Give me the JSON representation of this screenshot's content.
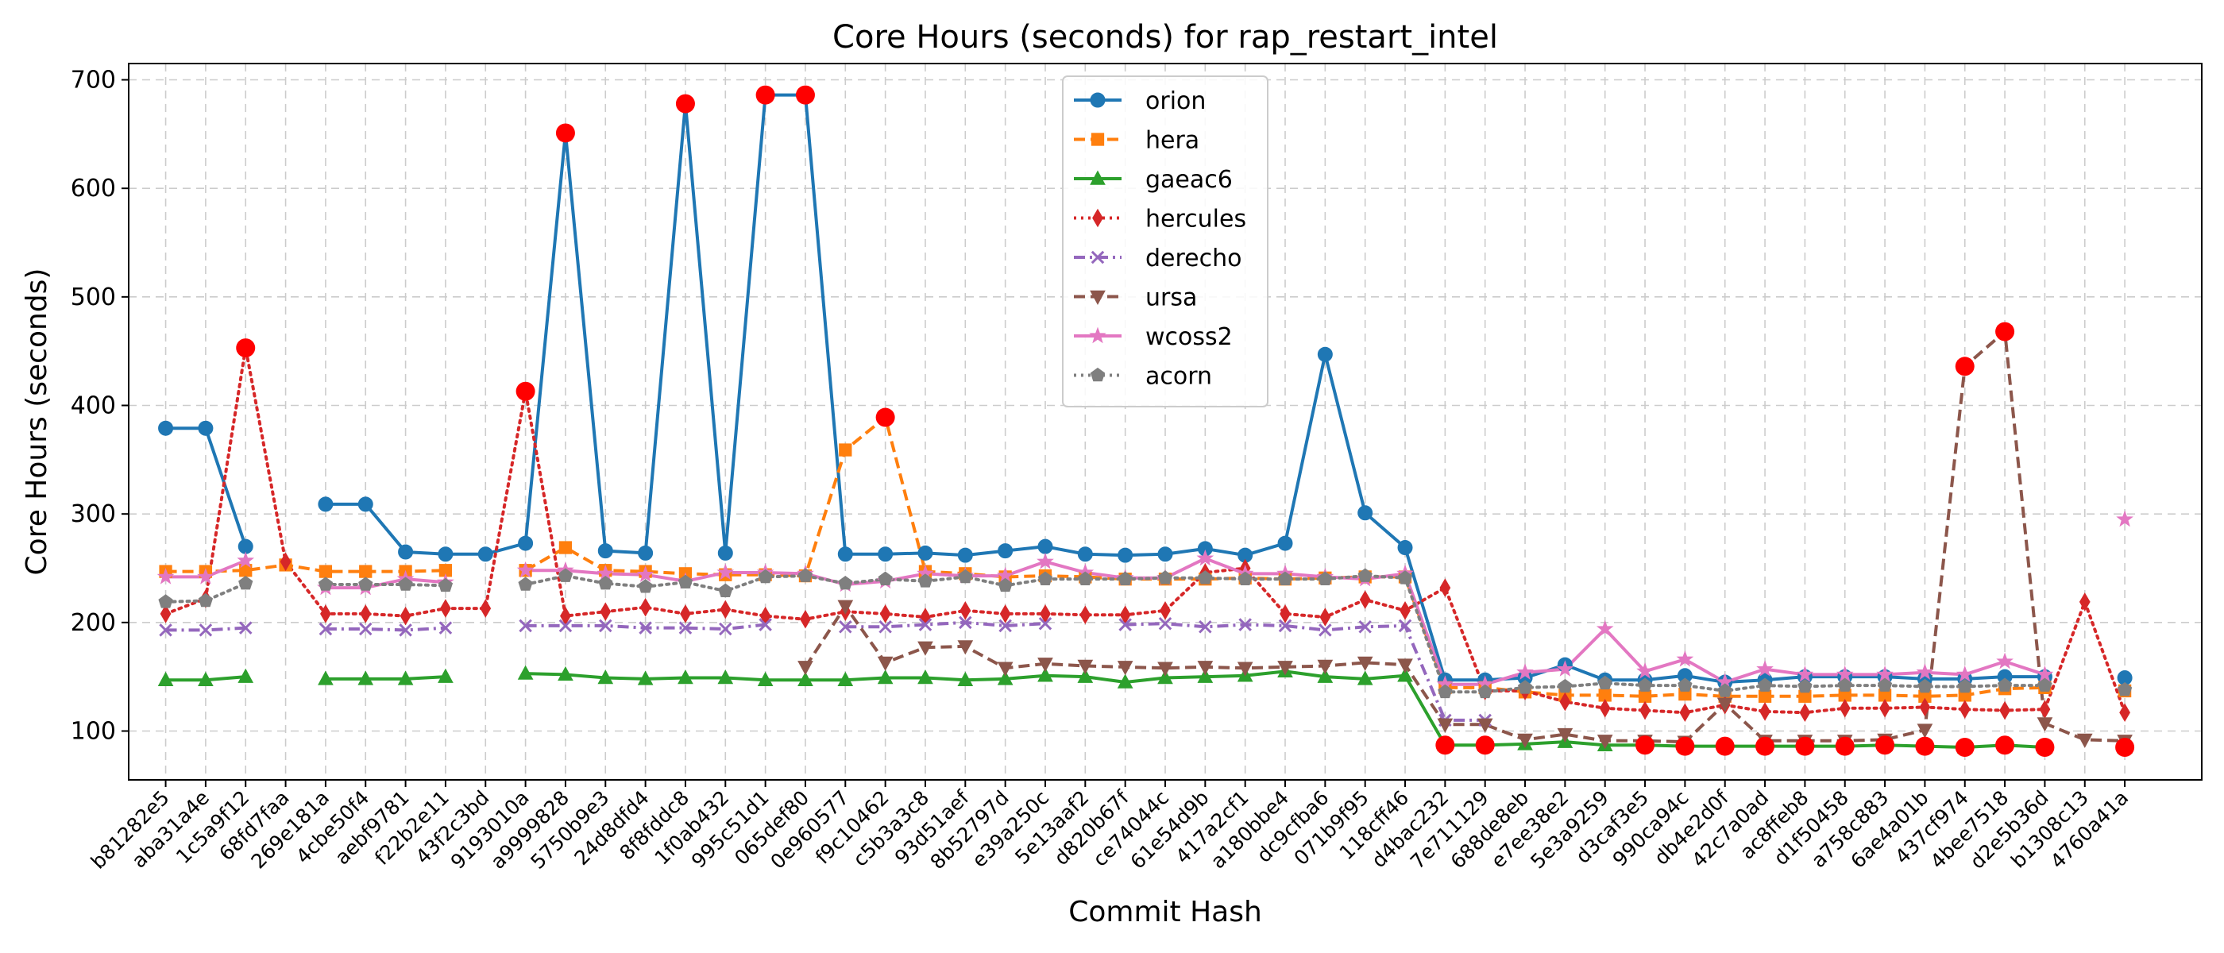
{
  "chart_data": {
    "type": "line",
    "title": "Core Hours (seconds) for rap_restart_intel",
    "xlabel": "Commit Hash",
    "ylabel": "Core Hours (seconds)",
    "ylim": [
      55,
      715
    ],
    "yticks": [
      100,
      200,
      300,
      400,
      500,
      600,
      700
    ],
    "grid": true,
    "legend_position": "top-center",
    "outlier_marker_color": "#ff0000",
    "categories": [
      "b81282e5",
      "aba31a4e",
      "1c5a9f12",
      "68fd7faa",
      "269e181a",
      "4cbe50f4",
      "aebf9781",
      "f22b2e11",
      "43f2c3bd",
      "9193010a",
      "a9999828",
      "5750b9e3",
      "24d8dfd4",
      "8f8fddc8",
      "1f0ab432",
      "995c51d1",
      "065def80",
      "0e960577",
      "f9c10462",
      "c5b3a3c8",
      "93d51aef",
      "8b52797d",
      "e39a250c",
      "5e13aaf2",
      "d820b67f",
      "ce74044c",
      "61e54d9b",
      "417a2cf1",
      "a180bbe4",
      "dc9cfba6",
      "071b9f95",
      "118cff46",
      "d4bac232",
      "7e711129",
      "688de8eb",
      "e7ee38e2",
      "5e3a9259",
      "d3caf3e5",
      "990ca94c",
      "db4e2d0f",
      "42c7a0ad",
      "ac8ffeb8",
      "d1f50458",
      "a758c883",
      "6ae4a01b",
      "437cf974",
      "4bee7518",
      "d2e5b36d",
      "b1308c13",
      "4760a41a"
    ],
    "series": [
      {
        "name": "orion",
        "color": "#1f77b4",
        "linestyle": "solid",
        "marker": "circle",
        "values": [
          379,
          379,
          270,
          null,
          309,
          309,
          265,
          263,
          263,
          273,
          651,
          266,
          264,
          678,
          264,
          686,
          686,
          263,
          263,
          264,
          262,
          266,
          270,
          263,
          262,
          263,
          268,
          262,
          273,
          447,
          301,
          269,
          147,
          147,
          149,
          161,
          147,
          147,
          151,
          145,
          147,
          150,
          150,
          150,
          148,
          148,
          150,
          150,
          null,
          149
        ],
        "outlier_indices": [
          10,
          13,
          15,
          16
        ]
      },
      {
        "name": "hera",
        "color": "#ff7f0e",
        "linestyle": "dashed",
        "marker": "square",
        "values": [
          247,
          247,
          248,
          253,
          247,
          247,
          247,
          248,
          null,
          248,
          269,
          248,
          247,
          245,
          244,
          244,
          243,
          359,
          389,
          247,
          245,
          242,
          243,
          242,
          240,
          240,
          240,
          241,
          240,
          241,
          242,
          242,
          140,
          140,
          136,
          133,
          133,
          132,
          134,
          132,
          132,
          132,
          133,
          133,
          132,
          133,
          139,
          140,
          null,
          137
        ],
        "outlier_indices": [
          18
        ]
      },
      {
        "name": "gaeac6",
        "color": "#2ca02c",
        "linestyle": "solid",
        "marker": "triangle-up",
        "values": [
          147,
          147,
          150,
          null,
          148,
          148,
          148,
          150,
          null,
          153,
          152,
          149,
          148,
          149,
          149,
          147,
          147,
          147,
          149,
          149,
          147,
          148,
          151,
          150,
          145,
          149,
          150,
          151,
          155,
          150,
          148,
          151,
          87,
          87,
          88,
          90,
          87,
          87,
          86,
          86,
          86,
          86,
          86,
          87,
          86,
          85,
          87,
          85,
          null,
          85
        ],
        "outlier_indices": [
          32,
          33,
          37,
          38,
          39,
          40,
          41,
          42,
          43,
          44,
          45,
          46,
          47,
          49
        ]
      },
      {
        "name": "hercules",
        "color": "#d62728",
        "linestyle": "dotted",
        "marker": "diamond",
        "values": [
          208,
          222,
          453,
          256,
          208,
          208,
          206,
          213,
          213,
          413,
          206,
          210,
          214,
          208,
          212,
          206,
          203,
          210,
          208,
          205,
          211,
          208,
          208,
          207,
          207,
          211,
          246,
          250,
          208,
          205,
          221,
          211,
          232,
          137,
          137,
          127,
          121,
          119,
          117,
          124,
          118,
          117,
          121,
          121,
          122,
          120,
          119,
          120,
          219,
          117
        ],
        "outlier_indices": [
          2,
          9
        ]
      },
      {
        "name": "derecho",
        "color": "#9467bd",
        "linestyle": "dashdot",
        "marker": "x",
        "values": [
          193,
          193,
          195,
          null,
          194,
          194,
          193,
          195,
          null,
          197,
          197,
          197,
          195,
          195,
          194,
          198,
          null,
          196,
          196,
          198,
          200,
          197,
          199,
          null,
          198,
          199,
          196,
          198,
          197,
          193,
          196,
          197,
          110,
          110,
          null,
          null,
          null,
          null,
          null,
          null,
          null,
          null,
          null,
          null,
          null,
          null,
          null,
          null,
          null,
          null
        ],
        "outlier_indices": []
      },
      {
        "name": "ursa",
        "color": "#8c564b",
        "linestyle": "dashed",
        "marker": "triangle-down",
        "values": [
          null,
          null,
          null,
          null,
          null,
          null,
          null,
          null,
          null,
          null,
          null,
          null,
          null,
          null,
          null,
          null,
          159,
          215,
          163,
          177,
          178,
          158,
          162,
          160,
          159,
          158,
          159,
          158,
          159,
          160,
          163,
          161,
          106,
          106,
          92,
          97,
          91,
          91,
          90,
          125,
          91,
          91,
          91,
          92,
          101,
          436,
          468,
          107,
          92,
          91
        ],
        "outlier_indices": [
          45,
          46
        ]
      },
      {
        "name": "wcoss2",
        "color": "#e377c2",
        "linestyle": "solid",
        "marker": "star",
        "values": [
          242,
          242,
          257,
          null,
          232,
          232,
          240,
          237,
          null,
          248,
          248,
          245,
          244,
          238,
          246,
          246,
          245,
          235,
          238,
          245,
          243,
          243,
          256,
          246,
          241,
          241,
          259,
          245,
          245,
          242,
          240,
          245,
          143,
          143,
          154,
          157,
          194,
          155,
          166,
          145,
          157,
          152,
          152,
          152,
          154,
          152,
          164,
          152,
          null,
          295
        ],
        "outlier_indices": []
      },
      {
        "name": "acorn",
        "color": "#7f7f7f",
        "linestyle": "dotted",
        "marker": "pentagon",
        "values": [
          219,
          220,
          236,
          null,
          235,
          235,
          235,
          234,
          null,
          235,
          243,
          236,
          233,
          237,
          229,
          242,
          243,
          236,
          240,
          238,
          242,
          234,
          240,
          240,
          240,
          241,
          241,
          240,
          240,
          240,
          243,
          241,
          136,
          136,
          140,
          141,
          144,
          142,
          142,
          137,
          142,
          141,
          142,
          142,
          141,
          141,
          142,
          142,
          null,
          138
        ],
        "outlier_indices": []
      }
    ]
  }
}
